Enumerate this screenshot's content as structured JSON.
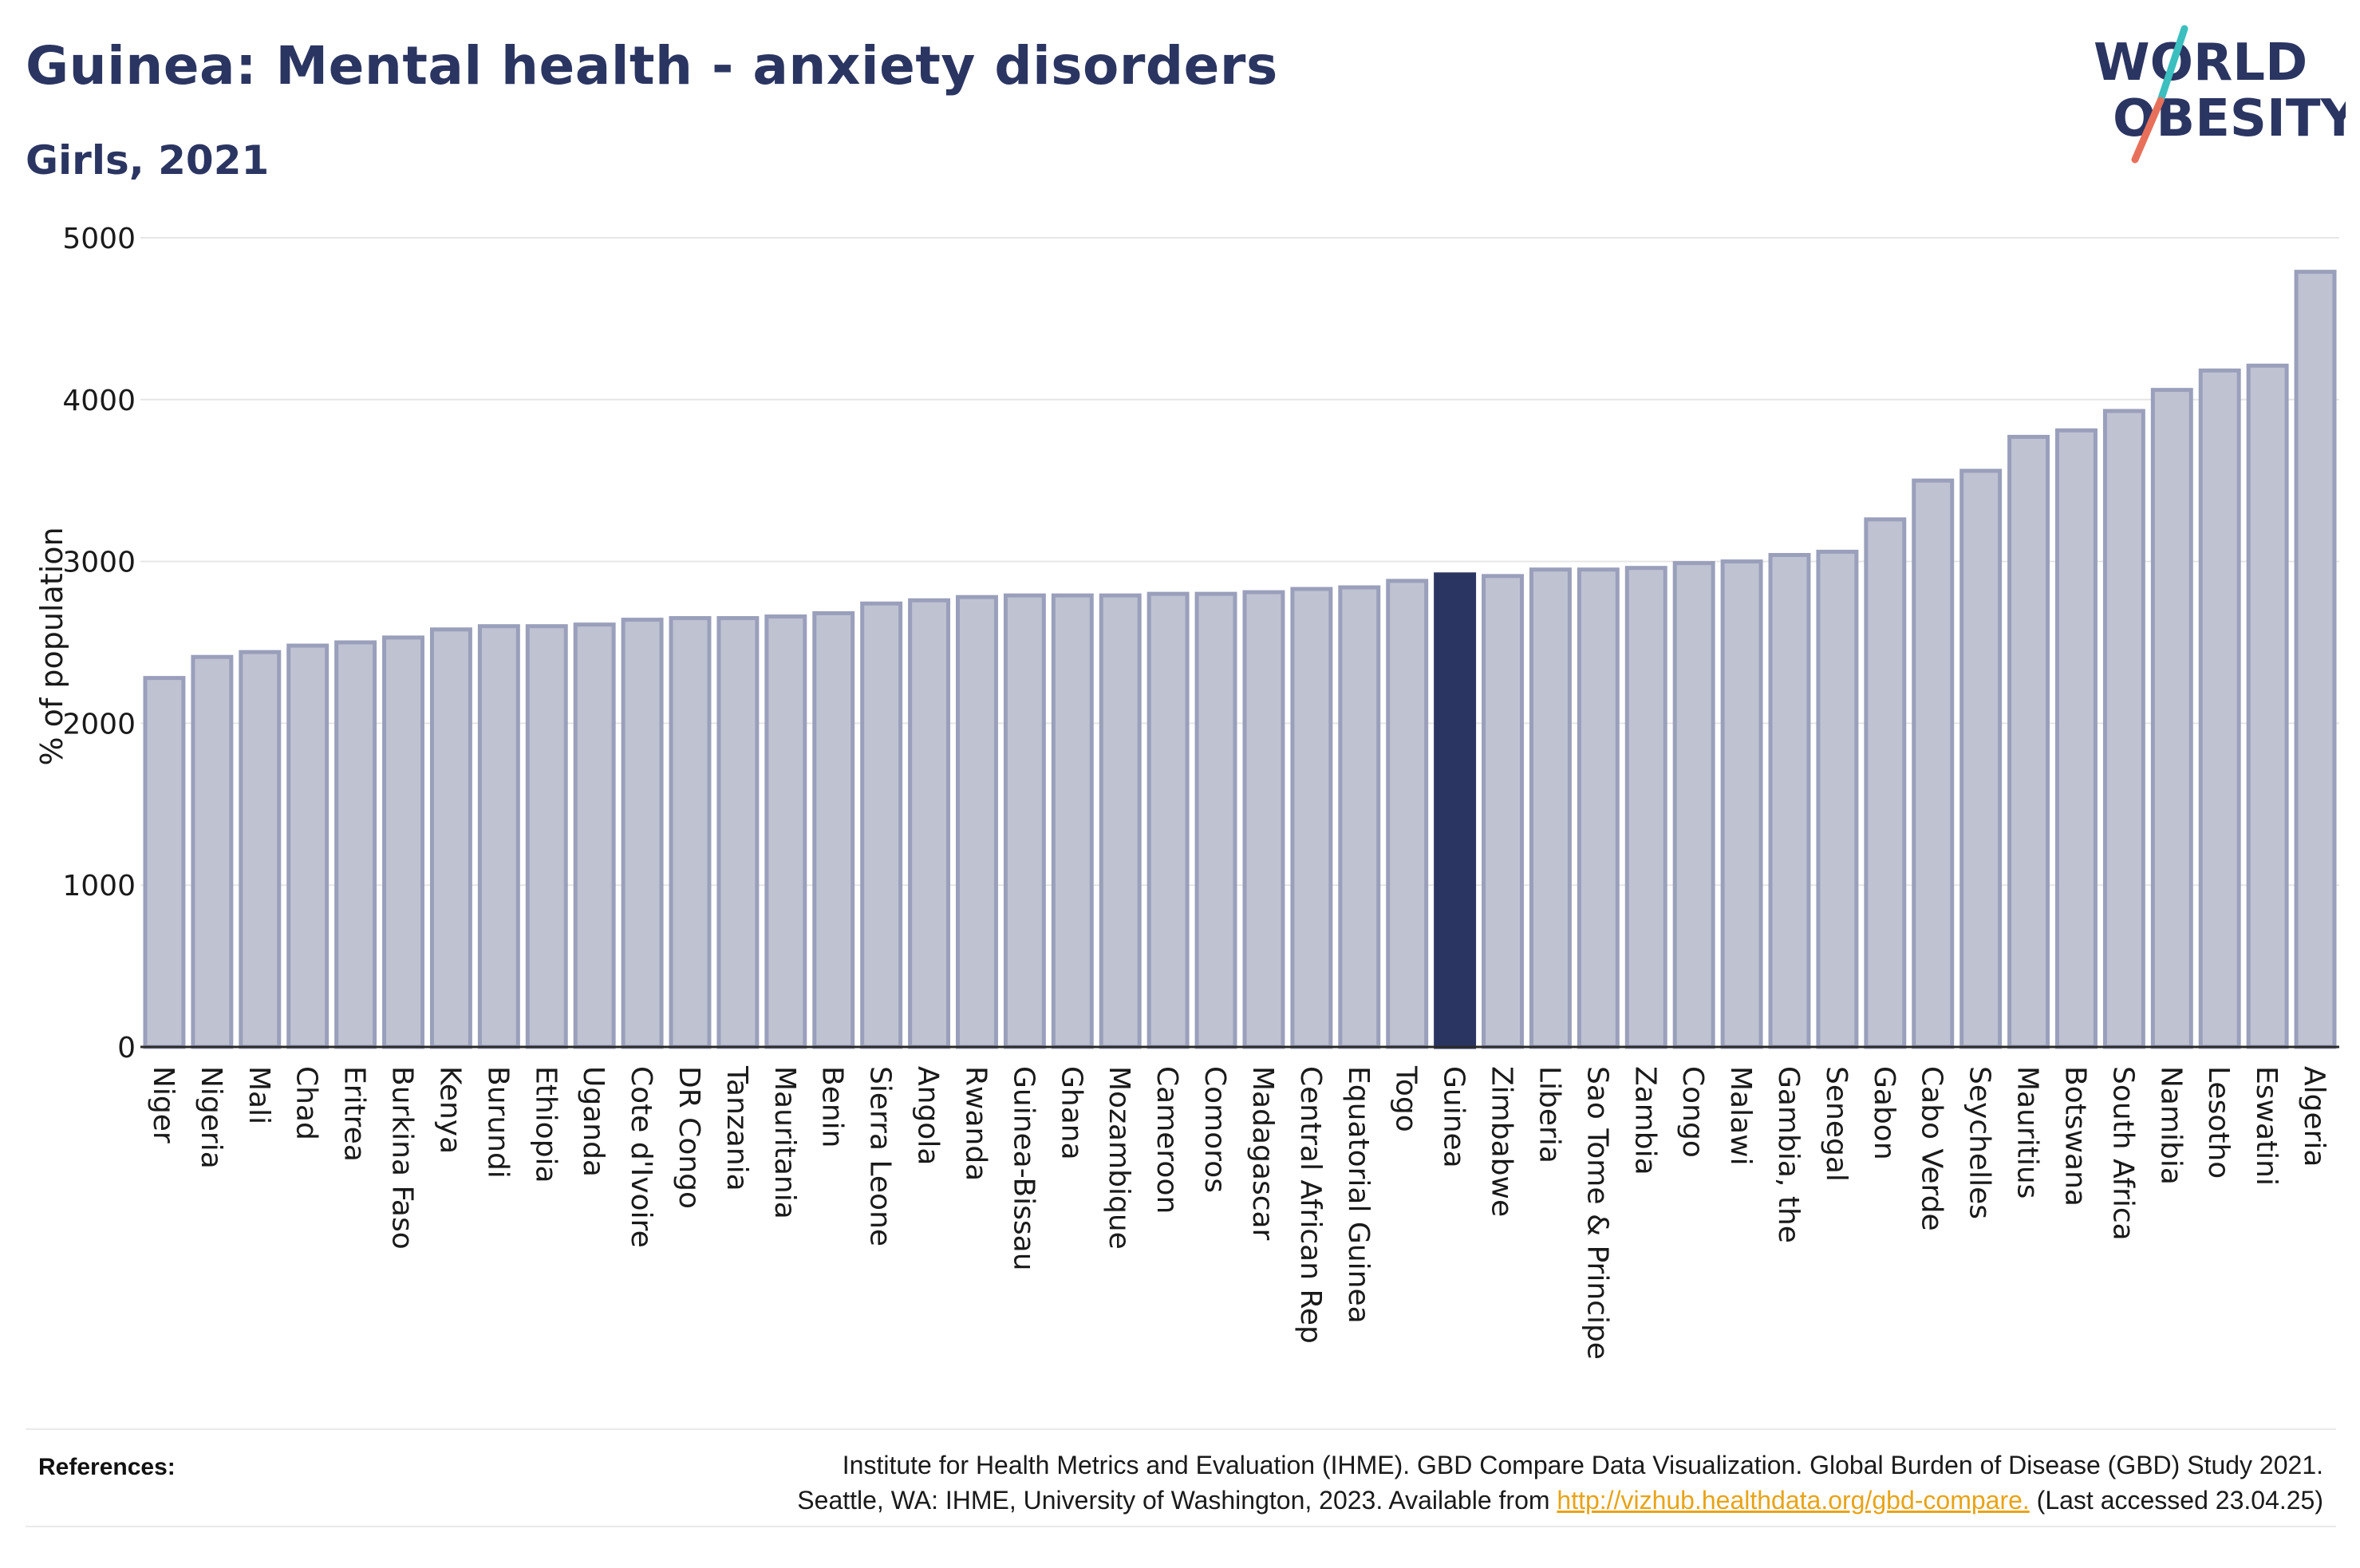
{
  "header": {
    "title": "Guinea: Mental health - anxiety disorders",
    "subtitle": "Girls, 2021"
  },
  "logo": {
    "line1": "WORLD",
    "line2": "OBESITY",
    "colors": {
      "text": "#2b3561",
      "teal": "#3bbfbf",
      "coral": "#e8705a"
    }
  },
  "colors": {
    "bar_fill": "#bfc2d1",
    "bar_stroke": "#9a9fbb",
    "highlight": "#2b3561",
    "grid": "#e6e6e6",
    "axis": "#2b2b2b"
  },
  "chart_data": {
    "type": "bar",
    "ylabel": "% of population",
    "xlabel": "",
    "ylim": [
      0,
      5000
    ],
    "yticks": [
      0,
      1000,
      2000,
      3000,
      4000,
      5000
    ],
    "grid": true,
    "highlight": "Guinea",
    "categories": [
      "Niger",
      "Nigeria",
      "Mali",
      "Chad",
      "Eritrea",
      "Burkina Faso",
      "Kenya",
      "Burundi",
      "Ethiopia",
      "Uganda",
      "Cote d'Ivoire",
      "DR Congo",
      "Tanzania",
      "Mauritania",
      "Benin",
      "Sierra Leone",
      "Angola",
      "Rwanda",
      "Guinea-Bissau",
      "Ghana",
      "Mozambique",
      "Cameroon",
      "Comoros",
      "Madagascar",
      "Central African Rep",
      "Equatorial Guinea",
      "Togo",
      "Guinea",
      "Zimbabwe",
      "Liberia",
      "Sao Tome & Principe",
      "Zambia",
      "Congo",
      "Malawi",
      "Gambia, the",
      "Senegal",
      "Gabon",
      "Cabo Verde",
      "Seychelles",
      "Mauritius",
      "Botswana",
      "South Africa",
      "Namibia",
      "Lesotho",
      "Eswatini",
      "Algeria"
    ],
    "values": [
      2280,
      2410,
      2440,
      2480,
      2500,
      2530,
      2580,
      2600,
      2600,
      2610,
      2640,
      2650,
      2650,
      2660,
      2680,
      2740,
      2760,
      2780,
      2790,
      2790,
      2790,
      2800,
      2800,
      2810,
      2830,
      2840,
      2880,
      2920,
      2910,
      2950,
      2950,
      2960,
      2990,
      3000,
      3040,
      3060,
      3260,
      3500,
      3560,
      3770,
      3810,
      3930,
      4060,
      4180,
      4210,
      4790
    ]
  },
  "references": {
    "label": "References:",
    "line1": "Institute for Health Metrics and Evaluation (IHME). GBD Compare Data Visualization. Global Burden of Disease (GBD) Study 2021.",
    "line2_prefix": "Seattle, WA: IHME, University of Washington, 2023. Available from ",
    "link": "http://vizhub.healthdata.org/gbd-compare.",
    "line2_suffix": " (Last accessed 23.04.25)"
  }
}
